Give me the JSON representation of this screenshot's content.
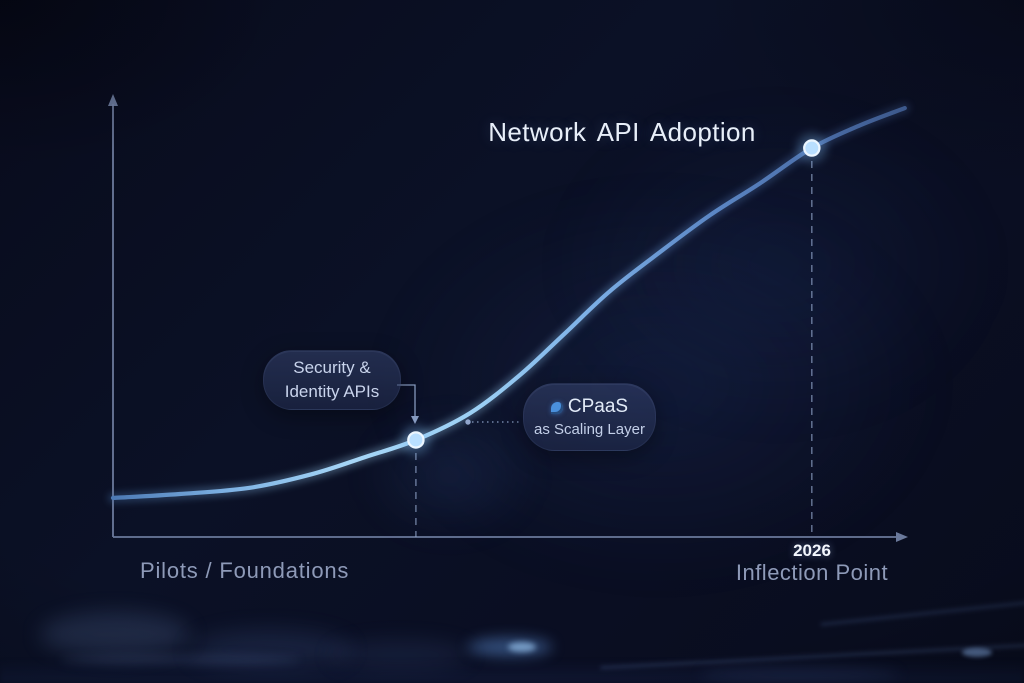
{
  "title": "Network API Adoption",
  "axis_labels": {
    "left": "Pilots / Foundations",
    "right_year": "2026",
    "right": "Inflection Point"
  },
  "annotations": {
    "security": {
      "line1": "Security &",
      "line2": "Identity APIs"
    },
    "cpaas": {
      "line1": "CPaaS",
      "line2": "as Scaling Layer",
      "icon": "cpaas-droplet-icon"
    }
  },
  "colors": {
    "background": "#0a0e22",
    "axis": "#7685a8",
    "dashed_line": "#93a7cc",
    "connector": "#9db4dc",
    "curve_left": "#4c79b4",
    "curve_bright": "#a6d6f7",
    "curve_right": "#43629a",
    "point_fill": "#b9dfff",
    "point_ring": "#ecf6ff",
    "point_halo": "#7fb9f0",
    "title_text": "#e8eff9",
    "label_text": "#8e9ab8",
    "year_text": "#f3f7fd",
    "bubble_text": "#c9d4ec",
    "cpaas_icon_blue": "#4a90dd"
  },
  "chart_data": {
    "type": "line",
    "subtype": "s-curve",
    "title": "Network API Adoption",
    "grid": false,
    "legend": false,
    "x_axis": {
      "arrow": true,
      "left_label": "Pilots / Foundations",
      "right_label": "Inflection Point",
      "right_year": "2026",
      "scale": "conceptual time"
    },
    "y_axis": {
      "arrow": true,
      "label": null,
      "scale": "conceptual adoption level 0-1"
    },
    "curve_points": [
      [
        0.0,
        0.089
      ],
      [
        0.084,
        0.098
      ],
      [
        0.172,
        0.112
      ],
      [
        0.25,
        0.143
      ],
      [
        0.317,
        0.182
      ],
      [
        0.381,
        0.221
      ],
      [
        0.449,
        0.282
      ],
      [
        0.512,
        0.369
      ],
      [
        0.569,
        0.465
      ],
      [
        0.625,
        0.56
      ],
      [
        0.688,
        0.649
      ],
      [
        0.751,
        0.733
      ],
      [
        0.814,
        0.806
      ],
      [
        0.879,
        0.886
      ],
      [
        0.94,
        0.938
      ],
      [
        0.996,
        0.977
      ]
    ],
    "milestones": [
      {
        "id": "security-identity-apis",
        "x": 0.381,
        "y": 0.221,
        "label": "Security & Identity APIs",
        "marker": "glow-dot",
        "dashed_drop_line": true
      },
      {
        "id": "inflection-point-2026",
        "x": 0.879,
        "y": 0.886,
        "year": "2026",
        "label": "Inflection Point",
        "marker": "glow-dot",
        "dashed_drop_line": true
      }
    ],
    "callouts": [
      {
        "target": "security-identity-apis",
        "text": "Security & Identity APIs"
      },
      {
        "target": "curve-mid",
        "text": "CPaaS as Scaling Layer",
        "icon": "cpaas-droplet-icon"
      }
    ]
  }
}
